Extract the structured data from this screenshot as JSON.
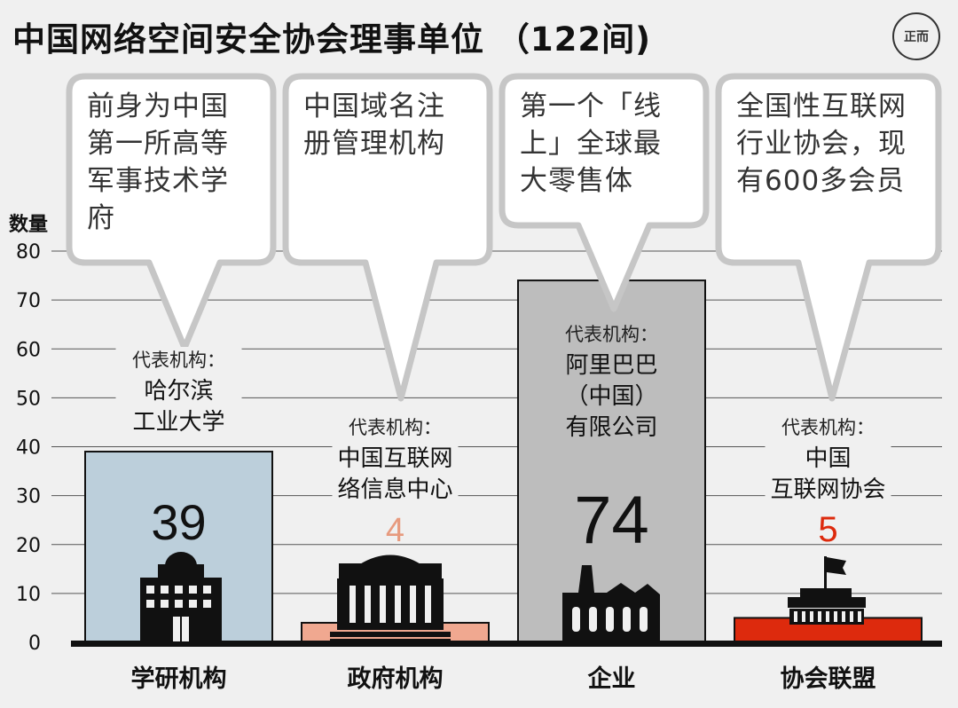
{
  "header": {
    "title": "中国网络空间安全协会理事单位 （122间)",
    "logo_text": "正而"
  },
  "chart_data": {
    "type": "bar",
    "ylabel": "数量",
    "ylim": [
      0,
      80
    ],
    "yticks": [
      0,
      10,
      20,
      30,
      40,
      50,
      60,
      70,
      80
    ],
    "grid": true,
    "categories": [
      "学研机构",
      "政府机构",
      "企业",
      "协会联盟"
    ],
    "values": [
      39,
      4,
      74,
      5
    ],
    "bar_colors": [
      "#bccfdb",
      "#f0a890",
      "#bdbdbd",
      "#dd2a0d"
    ],
    "value_label_colors": [
      "#111111",
      "#e79a7e",
      "#111111",
      "#dd2a0d"
    ],
    "rep_prefix": "代表机构：",
    "rep_names": [
      [
        "哈尔滨",
        "工业大学"
      ],
      [
        "中国互联网",
        "络信息中心"
      ],
      [
        "阿里巴巴",
        "（中国）",
        "有限公司"
      ],
      [
        "中国",
        "互联网协会"
      ]
    ],
    "callouts": [
      [
        "前身为中国",
        "第一所高等",
        "军事技术学",
        "府"
      ],
      [
        "中国域名注",
        "册管理机构"
      ],
      [
        "第一个「线",
        "上」全球最",
        "大零售体"
      ],
      [
        "全国性互联网",
        "行业协会，现",
        "有600多会员"
      ]
    ],
    "icons": [
      "school-building-icon",
      "government-building-icon",
      "factory-icon",
      "association-building-flag-icon"
    ]
  }
}
